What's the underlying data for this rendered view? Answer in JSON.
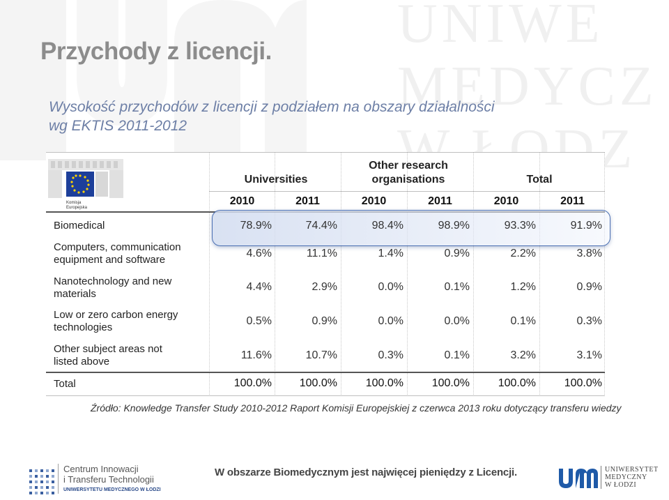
{
  "slide": {
    "title": "Przychody z licencji.",
    "subtitle": "Wysokość przychodów z licencji z podziałem na obszary działalności wg EKTIS 2011-2012",
    "source": "Źródło: Knowledge Transfer Study 2010-2012 Raport Komisji Europejskiej z  czerwca 2013 roku dotyczący transferu wiedzy"
  },
  "watermark": {
    "lines": [
      "UNIWE",
      "MEDYCZ",
      "W ŁODZ"
    ]
  },
  "eu_logo": {
    "caption_1": "Komisja",
    "caption_2": "Europejska"
  },
  "table": {
    "groups": [
      "Universities",
      "Other research organisations",
      "Total"
    ],
    "group_lines": [
      [
        "Universities"
      ],
      [
        "Other research",
        "organisations"
      ],
      [
        "Total"
      ]
    ],
    "years": [
      "2010",
      "2011",
      "2010",
      "2011",
      "2010",
      "2011"
    ],
    "rows": [
      {
        "label_lines": [
          "Biomedical"
        ],
        "values": [
          "78.9%",
          "74.4%",
          "98.4%",
          "98.9%",
          "93.3%",
          "91.9%"
        ]
      },
      {
        "label_lines": [
          "Computers, communication",
          "equipment and software"
        ],
        "values": [
          "4.6%",
          "11.1%",
          "1.4%",
          "0.9%",
          "2.2%",
          "3.8%"
        ]
      },
      {
        "label_lines": [
          "Nanotechnology and new",
          "materials"
        ],
        "values": [
          "4.4%",
          "2.9%",
          "0.0%",
          "0.1%",
          "1.2%",
          "0.9%"
        ]
      },
      {
        "label_lines": [
          "Low or zero carbon energy",
          "technologies"
        ],
        "values": [
          "0.5%",
          "0.9%",
          "0.0%",
          "0.0%",
          "0.1%",
          "0.3%"
        ]
      },
      {
        "label_lines": [
          "Other subject areas not",
          "listed above"
        ],
        "values": [
          "11.6%",
          "10.7%",
          "0.3%",
          "0.1%",
          "3.2%",
          "3.1%"
        ]
      }
    ],
    "total_row": {
      "label": "Total",
      "values": [
        "100.0%",
        "100.0%",
        "100.0%",
        "100.0%",
        "100.0%",
        "100.0%"
      ]
    },
    "highlight_color": "#4a6fb2"
  },
  "footer": {
    "cit_line1": "Centrum Innowacji",
    "cit_line2": "i Transferu Technologii",
    "cit_line3": "UNIWERSYTETU MEDYCZNEGO W ŁODZI",
    "message": "W obszarze Biomedycznym jest najwięcej pieniędzy z Licencji.",
    "uni_line1": "UNIWERSYTET",
    "uni_line2": "MEDYCZNY",
    "uni_line3": "W ŁODZI",
    "brand_color": "#1f5aa8"
  }
}
